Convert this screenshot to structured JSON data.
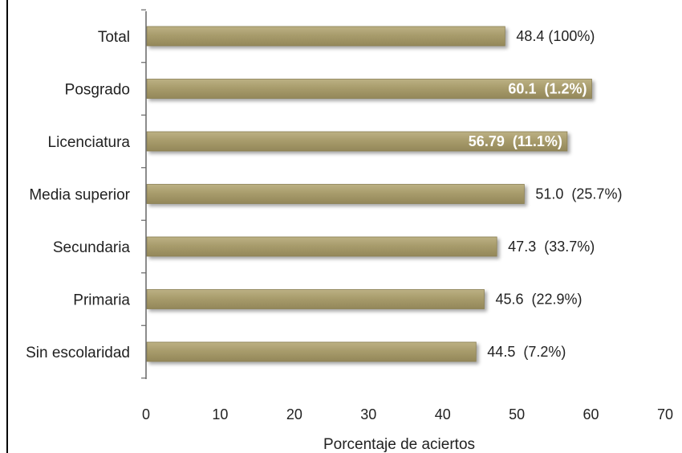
{
  "chart_data": {
    "type": "bar",
    "orientation": "horizontal",
    "title": "",
    "xlabel": "Porcentaje de aciertos",
    "ylabel": "",
    "xlim": [
      0,
      70
    ],
    "ticks": [
      "0",
      "10",
      "20",
      "30",
      "40",
      "50",
      "60",
      "70"
    ],
    "categories": [
      "Total",
      "Posgrado",
      "Licenciatura",
      "Media superior",
      "Secundaria",
      "Primaria",
      "Sin escolaridad"
    ],
    "values": [
      48.4,
      60.1,
      56.79,
      51.0,
      47.3,
      45.6,
      44.5
    ],
    "data_labels": [
      "48.4 (100%)",
      "60.1  (1.2%)",
      "56.79  (11.1%)",
      "51.0  (25.7%)",
      "47.3  (33.7%)",
      "45.6  (22.9%)",
      "44.5  (7.2%)"
    ],
    "labels_inside": [
      false,
      true,
      true,
      false,
      false,
      false,
      false
    ],
    "grid": false,
    "legend": "none",
    "colors": {
      "bar_fill": "#a5996a",
      "bar_edge": "#8a7f52",
      "axis": "#666666",
      "text": "#222222",
      "inside_label": "#ffffff"
    }
  }
}
